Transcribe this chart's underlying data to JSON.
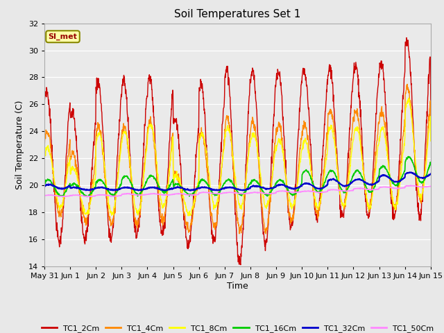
{
  "title": "Soil Temperatures Set 1",
  "xlabel": "Time",
  "ylabel": "Soil Temperature (C)",
  "ylim": [
    14,
    32
  ],
  "yticks": [
    14,
    16,
    18,
    20,
    22,
    24,
    26,
    28,
    30,
    32
  ],
  "annotation": "SI_met",
  "fig_bg_color": "#e8e8e8",
  "plot_bg_color": "#eaeaea",
  "grid_color": "#d0d0d0",
  "series_colors": {
    "TC1_2Cm": "#cc0000",
    "TC1_4Cm": "#ff8800",
    "TC1_8Cm": "#ffff00",
    "TC1_16Cm": "#00cc00",
    "TC1_32Cm": "#0000cc",
    "TC1_50Cm": "#ff88ff"
  },
  "n_days": 15,
  "x_labels": [
    "May 31",
    "Jun 1",
    "Jun 2",
    "Jun 3",
    "Jun 4",
    "Jun 5",
    "Jun 6",
    "Jun 7",
    "Jun 8",
    "Jun 9",
    "Jun 10",
    "Jun 11",
    "Jun 12",
    "Jun 13",
    "Jun 14",
    "Jun 15"
  ],
  "points_per_day": 96,
  "peaks_2cm": [
    27.0,
    25.4,
    27.7,
    27.7,
    28.0,
    24.9,
    27.4,
    28.7,
    28.5,
    28.5,
    28.5,
    28.7,
    29.0,
    29.0,
    30.7,
    27.0
  ],
  "troughs_2cm": [
    15.8,
    16.1,
    16.1,
    16.4,
    16.4,
    15.6,
    15.9,
    14.4,
    15.7,
    16.9,
    17.7,
    17.7,
    17.7,
    17.7,
    17.7,
    17.7
  ],
  "peaks_4cm": [
    23.9,
    22.4,
    24.4,
    24.4,
    24.8,
    20.9,
    24.0,
    25.0,
    24.7,
    24.5,
    24.5,
    25.5,
    25.5,
    25.5,
    27.2,
    25.0
  ],
  "troughs_4cm": [
    17.8,
    17.4,
    17.1,
    17.1,
    17.4,
    16.8,
    16.9,
    16.7,
    16.7,
    17.4,
    17.9,
    18.4,
    18.4,
    18.4,
    18.9,
    18.9
  ],
  "peaks_8cm": [
    22.8,
    21.3,
    23.8,
    24.0,
    24.5,
    20.8,
    23.8,
    24.3,
    23.8,
    23.3,
    23.3,
    24.3,
    24.3,
    24.3,
    26.3,
    23.8
  ],
  "troughs_8cm": [
    18.4,
    17.9,
    17.9,
    17.9,
    18.4,
    17.9,
    18.4,
    18.4,
    18.4,
    18.4,
    18.4,
    18.4,
    18.4,
    18.4,
    19.1,
    19.1
  ],
  "peaks_16cm": [
    20.4,
    20.1,
    20.4,
    20.7,
    20.7,
    20.1,
    20.4,
    20.4,
    20.4,
    20.4,
    21.1,
    21.1,
    21.1,
    21.4,
    22.1,
    21.9
  ],
  "troughs_16cm": [
    19.2,
    19.2,
    19.3,
    19.3,
    19.5,
    19.3,
    19.3,
    19.3,
    19.3,
    19.3,
    19.5,
    19.5,
    19.5,
    20.0,
    20.2,
    20.2
  ],
  "peaks_32cm": [
    20.05,
    19.85,
    19.85,
    19.85,
    19.85,
    19.85,
    19.85,
    19.85,
    19.95,
    20.05,
    20.15,
    20.45,
    20.45,
    20.75,
    20.95,
    20.95
  ],
  "troughs_32cm": [
    19.75,
    19.65,
    19.65,
    19.65,
    19.65,
    19.65,
    19.65,
    19.65,
    19.75,
    19.75,
    19.75,
    19.95,
    20.05,
    20.25,
    20.55,
    20.55
  ],
  "peaks_50cm": [
    19.28,
    19.28,
    19.3,
    19.38,
    19.38,
    19.38,
    19.48,
    19.48,
    19.48,
    19.58,
    19.58,
    19.68,
    19.78,
    19.88,
    19.98,
    19.98
  ],
  "troughs_50cm": [
    19.18,
    19.18,
    19.2,
    19.28,
    19.28,
    19.28,
    19.38,
    19.38,
    19.38,
    19.48,
    19.48,
    19.58,
    19.68,
    19.78,
    19.88,
    19.88
  ]
}
